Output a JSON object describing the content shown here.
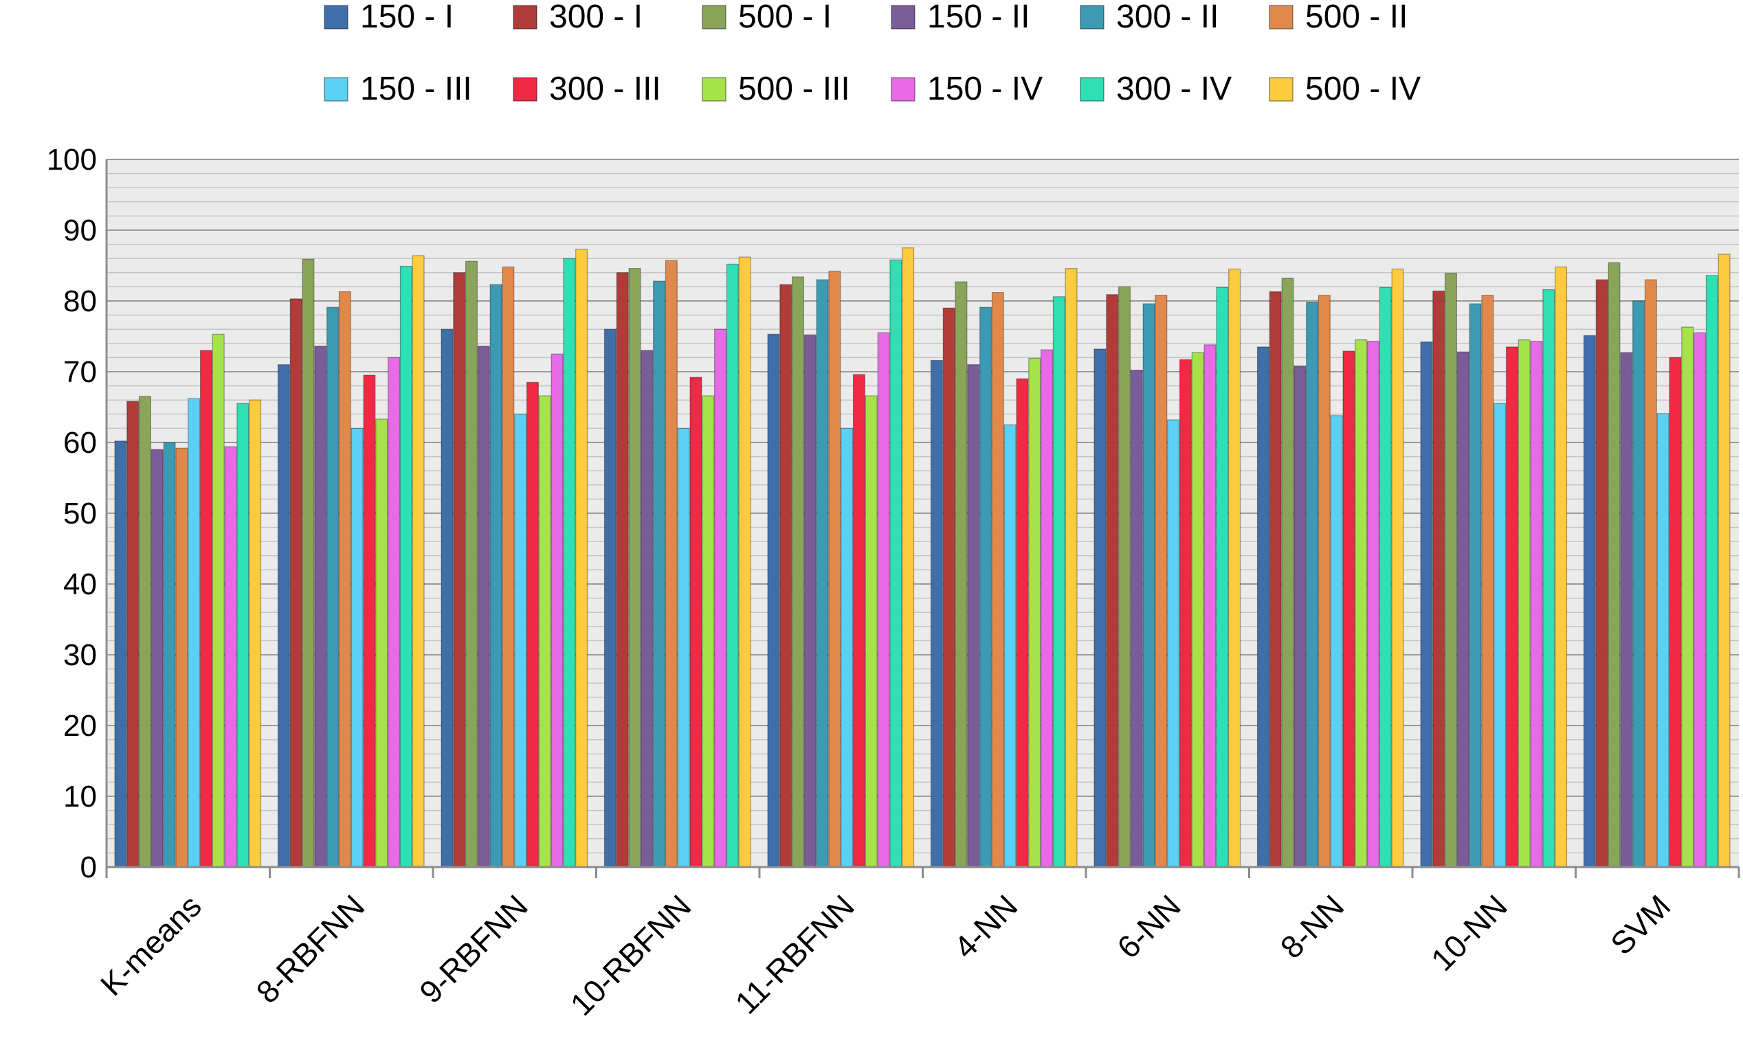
{
  "chart_data": {
    "type": "bar",
    "title": "",
    "xlabel": "",
    "ylabel": "",
    "ylim": [
      0,
      100
    ],
    "yticks": [
      0,
      10,
      20,
      30,
      40,
      50,
      60,
      70,
      80,
      90,
      100
    ],
    "grid": true,
    "legend_position": "top",
    "categories": [
      "K-means",
      "8-RBFNN",
      "9-RBFNN",
      "10-RBFNN",
      "11-RBFNN",
      "4-NN",
      "6-NN",
      "8-NN",
      "10-NN",
      "SVM"
    ],
    "series": [
      {
        "name": "150 - I",
        "color": "#3F6FA8",
        "values": [
          60.2,
          71.0,
          76.0,
          76.0,
          75.3,
          71.6,
          73.2,
          73.5,
          74.2,
          75.1
        ]
      },
      {
        "name": "300 - I",
        "color": "#B03C3A",
        "values": [
          65.8,
          80.3,
          84.0,
          84.0,
          82.3,
          79.0,
          80.9,
          81.3,
          81.4,
          83.0
        ]
      },
      {
        "name": "500 - I",
        "color": "#8AA55A",
        "values": [
          66.5,
          85.9,
          85.6,
          84.6,
          83.4,
          82.7,
          82.0,
          83.2,
          83.9,
          85.4
        ]
      },
      {
        "name": "150 - II",
        "color": "#7A5C99",
        "values": [
          59.0,
          73.6,
          73.6,
          73.0,
          75.2,
          71.0,
          70.2,
          70.8,
          72.8,
          72.7
        ]
      },
      {
        "name": "300 - II",
        "color": "#3C9AB2",
        "values": [
          60.0,
          79.1,
          82.3,
          82.8,
          83.0,
          79.1,
          79.6,
          79.8,
          79.6,
          80.0
        ]
      },
      {
        "name": "500 - II",
        "color": "#E0894A",
        "values": [
          59.2,
          81.3,
          84.8,
          85.7,
          84.2,
          81.2,
          80.8,
          80.8,
          80.8,
          83.0
        ]
      },
      {
        "name": "150 - III",
        "color": "#5CCFF5",
        "values": [
          66.2,
          62.0,
          64.0,
          62.0,
          62.0,
          62.5,
          63.2,
          63.8,
          65.5,
          64.1
        ]
      },
      {
        "name": "300 - III",
        "color": "#F02A45",
        "values": [
          73.0,
          69.5,
          68.5,
          69.2,
          69.6,
          69.0,
          71.7,
          72.9,
          73.5,
          72.0
        ]
      },
      {
        "name": "500 - III",
        "color": "#A6E24A",
        "values": [
          75.3,
          63.3,
          66.6,
          66.6,
          66.6,
          71.9,
          72.7,
          74.5,
          74.5,
          76.3
        ]
      },
      {
        "name": "150 - IV",
        "color": "#E76BE6",
        "values": [
          59.4,
          72.0,
          72.5,
          76.0,
          75.5,
          73.1,
          73.8,
          74.3,
          74.3,
          75.5
        ]
      },
      {
        "name": "300 - IV",
        "color": "#2EE0B4",
        "values": [
          65.5,
          84.9,
          86.0,
          85.2,
          85.8,
          80.6,
          81.9,
          81.9,
          81.6,
          83.6
        ]
      },
      {
        "name": "500 - IV",
        "color": "#FDCB3F",
        "values": [
          66.0,
          86.4,
          87.3,
          86.2,
          87.5,
          84.6,
          84.5,
          84.5,
          84.8,
          86.6
        ]
      }
    ]
  }
}
